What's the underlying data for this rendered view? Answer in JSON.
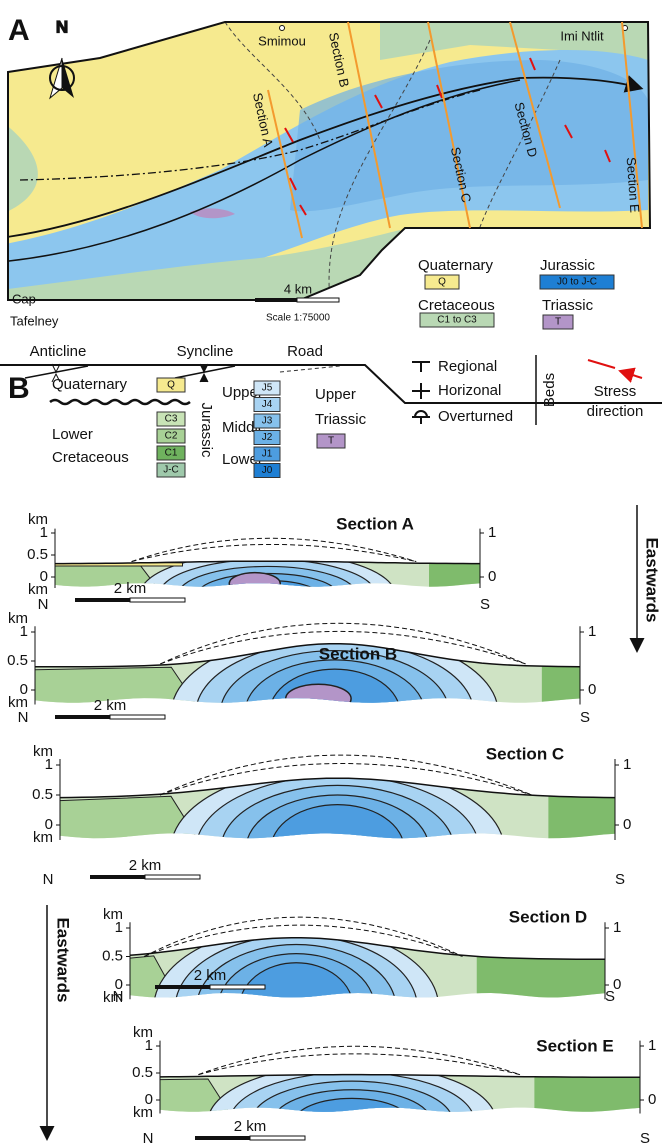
{
  "panel_a": {
    "label": "A",
    "north": "N",
    "places": {
      "smimou": "Smimou",
      "imi_ntlit": "Imi Ntlit",
      "cap": [
        "Cap",
        "Tafelney"
      ]
    },
    "sections": [
      "Section A",
      "Section B",
      "Section C",
      "Section D",
      "Section E"
    ],
    "scale": {
      "distance": "4 km",
      "ratio": "Scale 1:75000"
    },
    "legend": [
      {
        "name": "Quaternary",
        "code": "Q"
      },
      {
        "name": "Jurassic",
        "code": "J0 to J-C"
      },
      {
        "name": "Cretaceous",
        "code": "C1 to C3"
      },
      {
        "name": "Triassic",
        "code": "T"
      }
    ],
    "structures": [
      "Anticline",
      "Syncline",
      "Road"
    ],
    "beds": {
      "title": "Beds",
      "items": [
        "Regional",
        "Horizonal",
        "Overturned"
      ]
    },
    "stress": [
      "Stress",
      "direction"
    ]
  },
  "panel_b": {
    "label": "B",
    "legend": {
      "quaternary": {
        "name": "Quaternary",
        "code": "Q"
      },
      "cretaceous": {
        "name": [
          "Lower",
          "Cretaceous"
        ],
        "codes": [
          "C3",
          "C2",
          "C1",
          "J-C"
        ]
      },
      "jurassic": {
        "name": "Jurassic",
        "groups": [
          {
            "name": "Upper",
            "codes": [
              "J5",
              "J4"
            ]
          },
          {
            "name": "Middle",
            "codes": [
              "J3",
              "J2"
            ]
          },
          {
            "name": "Lower",
            "codes": [
              "J1",
              "J0"
            ]
          }
        ]
      },
      "triassic": {
        "name": [
          "Upper",
          "Triassic"
        ],
        "code": "T"
      }
    },
    "direction": "Eastwards",
    "sections": [
      {
        "title": "Section A",
        "left_axis": [
          "km",
          "1",
          "0.5",
          "0",
          "km"
        ],
        "right_axis": [
          "1",
          "0"
        ],
        "ends": [
          "N",
          "S"
        ],
        "scale": "2 km"
      },
      {
        "title": "Section B",
        "left_axis": [
          "km",
          "1",
          "0.5",
          "0",
          "km"
        ],
        "right_axis": [
          "1",
          "0"
        ],
        "ends": [
          "N",
          "S"
        ],
        "scale": "2 km"
      },
      {
        "title": "Section C",
        "left_axis": [
          "km",
          "1",
          "0.5",
          "0",
          "km"
        ],
        "right_axis": [
          "1",
          "0"
        ],
        "ends": [
          "N",
          "S"
        ],
        "scale": "2 km"
      },
      {
        "title": "Section D",
        "left_axis": [
          "km",
          "1",
          "0.5",
          "0",
          "km"
        ],
        "right_axis": [
          "1",
          "0"
        ],
        "ends": [
          "N",
          "S"
        ],
        "scale": "2 km"
      },
      {
        "title": "Section E",
        "left_axis": [
          "km",
          "1",
          "0.5",
          "0",
          "km"
        ],
        "right_axis": [
          "1",
          "0"
        ],
        "ends": [
          "N",
          "S"
        ],
        "scale": "2 km"
      }
    ]
  }
}
